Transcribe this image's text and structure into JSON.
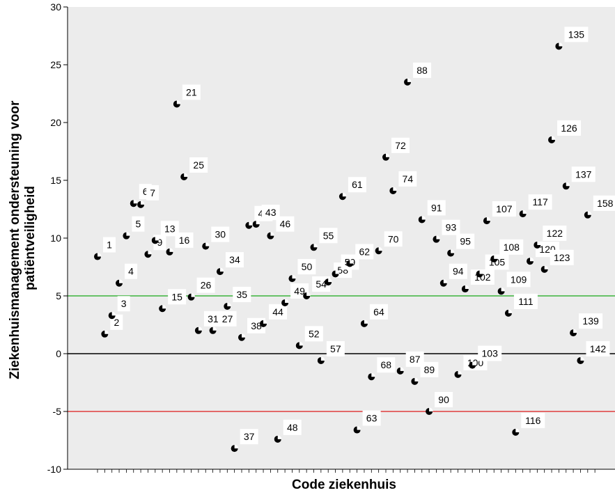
{
  "chart_data": {
    "type": "scatter",
    "xlabel": "Code ziekenhuis",
    "ylabel_lines": [
      "Ziekenhuismanagement ondersteuning voor",
      "patiëntveiligheid"
    ],
    "ylim": [
      -10,
      30
    ],
    "yticks": [
      30,
      25,
      20,
      15,
      10,
      5,
      0,
      -5,
      -10
    ],
    "ytick_labels": [
      "30",
      "25",
      "20",
      "15",
      "10",
      "5",
      "0",
      "-5",
      "-10"
    ],
    "grid": false,
    "colors": {
      "background": "#ececec",
      "point": "#000000",
      "reference_zero": "#000000",
      "reference_upper": "#3cb43c",
      "reference_lower": "#e03c3c"
    },
    "reference_lines": [
      {
        "y": 5,
        "color": "#3cb43c"
      },
      {
        "y": 0,
        "color": "#000000"
      },
      {
        "y": -5,
        "color": "#e03c3c"
      }
    ],
    "x_count": 70,
    "points": [
      {
        "label": "1",
        "x": 1,
        "y": 8.4
      },
      {
        "label": "2",
        "x": 2,
        "y": 1.7
      },
      {
        "label": "3",
        "x": 3,
        "y": 3.3
      },
      {
        "label": "4",
        "x": 4,
        "y": 6.1
      },
      {
        "label": "5",
        "x": 5,
        "y": 10.2
      },
      {
        "label": "6",
        "x": 6,
        "y": 13.0
      },
      {
        "label": "7",
        "x": 7,
        "y": 12.9
      },
      {
        "label": "9",
        "x": 8,
        "y": 8.6
      },
      {
        "label": "13",
        "x": 9,
        "y": 9.8
      },
      {
        "label": "15",
        "x": 10,
        "y": 3.9
      },
      {
        "label": "16",
        "x": 11,
        "y": 8.8
      },
      {
        "label": "21",
        "x": 12,
        "y": 21.6
      },
      {
        "label": "25",
        "x": 13,
        "y": 15.3
      },
      {
        "label": "26",
        "x": 14,
        "y": 4.9
      },
      {
        "label": "31",
        "x": 15,
        "y": 2.0
      },
      {
        "label": "30",
        "x": 16,
        "y": 9.3
      },
      {
        "label": "27",
        "x": 17,
        "y": 2.0
      },
      {
        "label": "34",
        "x": 18,
        "y": 7.1
      },
      {
        "label": "35",
        "x": 19,
        "y": 4.1
      },
      {
        "label": "37",
        "x": 20,
        "y": -8.2
      },
      {
        "label": "38",
        "x": 21,
        "y": 1.4
      },
      {
        "label": "41",
        "x": 22,
        "y": 11.1
      },
      {
        "label": "43",
        "x": 23,
        "y": 11.2
      },
      {
        "label": "44",
        "x": 24,
        "y": 2.6
      },
      {
        "label": "46",
        "x": 25,
        "y": 10.2
      },
      {
        "label": "48",
        "x": 26,
        "y": -7.4
      },
      {
        "label": "49",
        "x": 27,
        "y": 4.4
      },
      {
        "label": "50",
        "x": 28,
        "y": 6.5
      },
      {
        "label": "52",
        "x": 29,
        "y": 0.7
      },
      {
        "label": "54",
        "x": 30,
        "y": 5.0
      },
      {
        "label": "55",
        "x": 31,
        "y": 9.2
      },
      {
        "label": "57",
        "x": 32,
        "y": -0.6
      },
      {
        "label": "58",
        "x": 33,
        "y": 6.2
      },
      {
        "label": "59",
        "x": 34,
        "y": 6.9
      },
      {
        "label": "61",
        "x": 35,
        "y": 13.6
      },
      {
        "label": "62",
        "x": 36,
        "y": 7.8
      },
      {
        "label": "63",
        "x": 37,
        "y": -6.6
      },
      {
        "label": "64",
        "x": 38,
        "y": 2.6
      },
      {
        "label": "68",
        "x": 39,
        "y": -2.0
      },
      {
        "label": "70",
        "x": 40,
        "y": 8.9
      },
      {
        "label": "72",
        "x": 41,
        "y": 17.0
      },
      {
        "label": "74",
        "x": 42,
        "y": 14.1
      },
      {
        "label": "87",
        "x": 43,
        "y": -1.5
      },
      {
        "label": "88",
        "x": 44,
        "y": 23.5
      },
      {
        "label": "89",
        "x": 45,
        "y": -2.4
      },
      {
        "label": "91",
        "x": 46,
        "y": 11.6
      },
      {
        "label": "90",
        "x": 47,
        "y": -5.0
      },
      {
        "label": "93",
        "x": 48,
        "y": 9.9
      },
      {
        "label": "94",
        "x": 49,
        "y": 6.1
      },
      {
        "label": "95",
        "x": 50,
        "y": 8.7
      },
      {
        "label": "100",
        "x": 51,
        "y": -1.8
      },
      {
        "label": "102",
        "x": 52,
        "y": 5.6
      },
      {
        "label": "103",
        "x": 53,
        "y": -1.0
      },
      {
        "label": "105",
        "x": 54,
        "y": 6.9
      },
      {
        "label": "107",
        "x": 55,
        "y": 11.5
      },
      {
        "label": "108",
        "x": 56,
        "y": 8.2
      },
      {
        "label": "109",
        "x": 57,
        "y": 5.4
      },
      {
        "label": "111",
        "x": 58,
        "y": 3.5
      },
      {
        "label": "116",
        "x": 59,
        "y": -6.8
      },
      {
        "label": "117",
        "x": 60,
        "y": 12.1
      },
      {
        "label": "120",
        "x": 61,
        "y": 8.0
      },
      {
        "label": "122",
        "x": 62,
        "y": 9.4
      },
      {
        "label": "123",
        "x": 63,
        "y": 7.3
      },
      {
        "label": "126",
        "x": 64,
        "y": 18.5
      },
      {
        "label": "135",
        "x": 65,
        "y": 26.6
      },
      {
        "label": "137",
        "x": 66,
        "y": 14.5
      },
      {
        "label": "139",
        "x": 67,
        "y": 1.8
      },
      {
        "label": "142",
        "x": 68,
        "y": -0.6
      },
      {
        "label": "158",
        "x": 69,
        "y": 12.0
      }
    ]
  }
}
